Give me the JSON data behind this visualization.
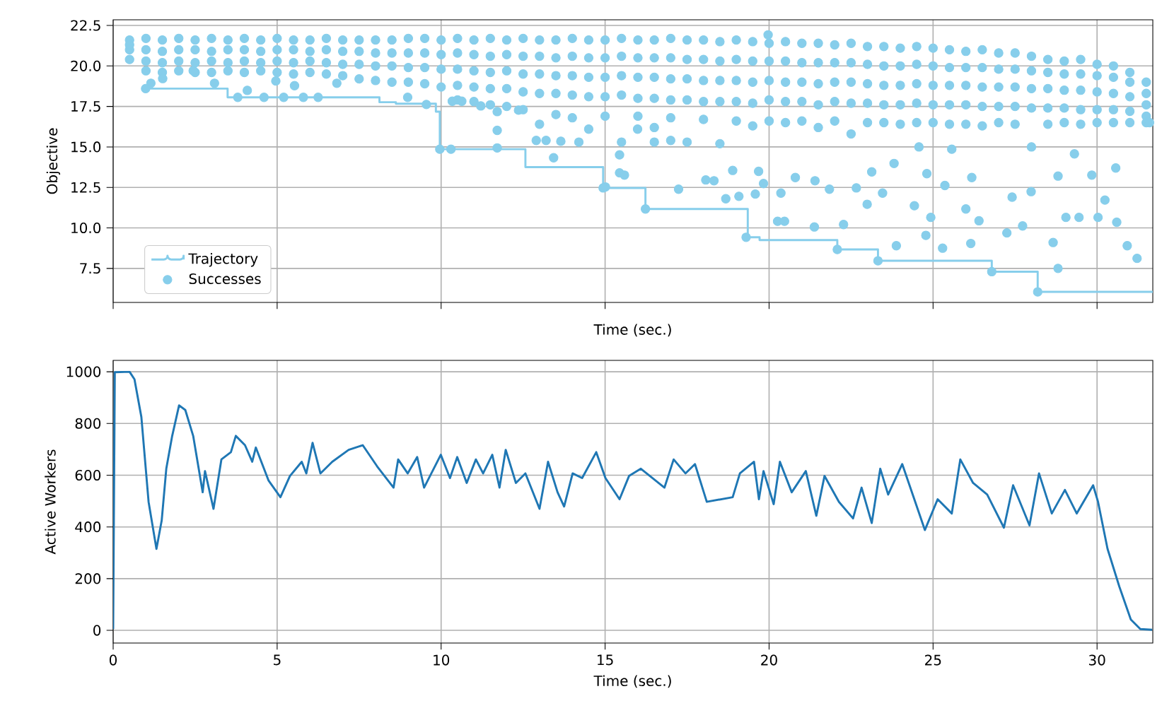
{
  "chart_data": [
    {
      "type": "scatter",
      "xlabel": "Time (sec.)",
      "ylabel": "Objective",
      "xlim": [
        0,
        31.7
      ],
      "ylim": [
        5.4,
        22.85
      ],
      "xticks": [
        0,
        5,
        10,
        15,
        20,
        25,
        30
      ],
      "yticks": [
        7.5,
        {
          "value": 10,
          "label": "10.0"
        },
        12.5,
        {
          "value": 15,
          "label": "15.0"
        },
        17.5,
        {
          "value": 20,
          "label": "20.0"
        },
        22.5
      ],
      "tick_labels": "y",
      "grid": true,
      "legend": "bottom left",
      "series": [
        {
          "name": "Trajectory",
          "type": "step",
          "marker": "none",
          "color": "#87ceeb",
          "x": [
            0.99,
            3.49,
            8.12,
            8.62,
            9.84,
            9.96,
            12.57,
            14.94,
            16.23,
            19.35,
            19.71,
            22.08,
            23.32,
            26.79,
            28.19,
            31.7
          ],
          "values": [
            18.6,
            18.06,
            17.76,
            17.67,
            17.18,
            14.86,
            13.75,
            12.47,
            11.17,
            9.42,
            9.25,
            8.67,
            7.97,
            7.3,
            6.05,
            6.05
          ]
        },
        {
          "name": "Successes",
          "type": "scatter",
          "color": "#87ceeb",
          "x": [
            0.5,
            0.5,
            0.5,
            0.5,
            1,
            1,
            1,
            1,
            1.5,
            1.5,
            1.5,
            1.5,
            2,
            2,
            2,
            2,
            2.5,
            2.5,
            2.5,
            2.5,
            3,
            3,
            3,
            3,
            3.5,
            3.5,
            3.5,
            3.5,
            4,
            4,
            4,
            4,
            4.5,
            4.5,
            4.5,
            4.5,
            5,
            5,
            5,
            5,
            5.5,
            5.5,
            5.5,
            5.5,
            6,
            6,
            6,
            6,
            6.5,
            6.5,
            6.5,
            6.5,
            7,
            7,
            7,
            7,
            7.5,
            7.5,
            7.5,
            7.5,
            8,
            8,
            8,
            8,
            8.5,
            8.5,
            8.5,
            8.5,
            9,
            9,
            9,
            9,
            9.5,
            9.5,
            9.5,
            9.5,
            10,
            10,
            10,
            10,
            10.5,
            10.5,
            10.5,
            10.5,
            10.5,
            11,
            11,
            11,
            11,
            11,
            11.5,
            11.5,
            11.5,
            11.5,
            11.5,
            12,
            12,
            12,
            12,
            12,
            12.5,
            12.5,
            12.5,
            12.5,
            12.5,
            13,
            13,
            13,
            13,
            13,
            13.5,
            13.5,
            13.5,
            13.5,
            13.5,
            14,
            14,
            14,
            14,
            14,
            14.5,
            14.5,
            14.5,
            14.5,
            14.5,
            15,
            15,
            15,
            15,
            15,
            15.5,
            15.5,
            15.5,
            15.5,
            15.5,
            16,
            16,
            16,
            16,
            16,
            16.5,
            16.5,
            16.5,
            16.5,
            16.5,
            17,
            17,
            17,
            17,
            17,
            17.5,
            17.5,
            17.5,
            17.5,
            17.5,
            18,
            18,
            18,
            18,
            18,
            18.5,
            18.5,
            18.5,
            18.5,
            18.5,
            19,
            19,
            19,
            19,
            19,
            19.5,
            19.5,
            19.5,
            19.5,
            19.5,
            20,
            20,
            20,
            20,
            20,
            20.5,
            20.5,
            20.5,
            20.5,
            20.5,
            21,
            21,
            21,
            21,
            21,
            21.5,
            21.5,
            21.5,
            21.5,
            21.5,
            22,
            22,
            22,
            22,
            22,
            22.5,
            22.5,
            22.5,
            22.5,
            22.5,
            23,
            23,
            23,
            23,
            23,
            23.5,
            23.5,
            23.5,
            23.5,
            23.5,
            24,
            24,
            24,
            24,
            24,
            24.5,
            24.5,
            24.5,
            24.5,
            24.5,
            25,
            25,
            25,
            25,
            25,
            25.5,
            25.5,
            25.5,
            25.5,
            25.5,
            26,
            26,
            26,
            26,
            26,
            26.5,
            26.5,
            26.5,
            26.5,
            26.5,
            27,
            27,
            27,
            27,
            27,
            27.5,
            27.5,
            27.5,
            27.5,
            27.5,
            28,
            28,
            28,
            28,
            28,
            28.5,
            28.5,
            28.5,
            28.5,
            28.5,
            29,
            29,
            29,
            29,
            29,
            29.5,
            29.5,
            29.5,
            29.5,
            29.5,
            30,
            30,
            30,
            30,
            30,
            30.5,
            30.5,
            30.5,
            30.5,
            30.5,
            31,
            31,
            31,
            31,
            31,
            31.5,
            31.5,
            31.5,
            31.5,
            31.5,
            19.97,
            24.43,
            24.93,
            24.78,
            23.88,
            25.29,
            26.15,
            27.25,
            27.73,
            28.81,
            28.66,
            29.05,
            29.45,
            30.03,
            30.24,
            30.57,
            30.6,
            30.92,
            31.22,
            29.84,
            28.81,
            29.31,
            27.41,
            27.99,
            26.4,
            26.0,
            26.18,
            25.36,
            24.81,
            24.57,
            25.57,
            22.99,
            22.27,
            21.38,
            20.26,
            20.47,
            20.36,
            20.8,
            21.4,
            21.84,
            22.66,
            23.46,
            23.81,
            23.13,
            19.58,
            19.08,
            18.68,
            17.24,
            18.07,
            18.32,
            18.89,
            19.68,
            19.83,
            11.71,
            11.71,
            13.43,
            15.44,
            13.65,
            15.99,
            10.34,
            10.63,
            11.21,
            11.71,
            12.36,
            6.25,
            6.82,
            5.53,
            4.96,
            2.44,
            1.51,
            1.15,
            3.09,
            4.09,
            4.6,
            5.2,
            5.8,
            3.8,
            8.98,
            9.55,
            15.44,
            15.59,
            15.01,
            12.9,
            13.2,
            14.2,
            16.5,
            17.0,
            19.3,
            22.08,
            23.32,
            26.79,
            28.19,
            16.23,
            14.94,
            9.96,
            10.3,
            0.99,
            31.6
          ],
          "values": [
            21.6,
            21.0,
            20.4,
            21.3,
            21.7,
            21.0,
            20.3,
            19.7,
            21.6,
            20.9,
            20.2,
            19.6,
            21.7,
            21.0,
            20.3,
            19.7,
            21.6,
            21.0,
            20.2,
            19.6,
            21.7,
            20.9,
            20.3,
            19.6,
            21.6,
            21.0,
            20.2,
            19.7,
            21.7,
            21.0,
            20.3,
            19.6,
            21.6,
            20.9,
            20.2,
            19.7,
            21.7,
            21.0,
            20.3,
            19.6,
            21.6,
            21.0,
            20.2,
            19.5,
            21.6,
            20.9,
            20.3,
            19.6,
            21.7,
            21.0,
            20.2,
            19.5,
            21.6,
            20.9,
            20.1,
            19.4,
            21.6,
            20.9,
            20.1,
            19.2,
            21.6,
            20.8,
            20.0,
            19.1,
            21.6,
            20.8,
            20.0,
            19.0,
            21.7,
            20.8,
            19.9,
            19.0,
            21.7,
            20.8,
            19.9,
            18.9,
            21.6,
            20.7,
            19.8,
            18.7,
            21.7,
            20.8,
            19.8,
            18.8,
            17.9,
            21.6,
            20.7,
            19.7,
            18.7,
            17.8,
            21.7,
            20.6,
            19.6,
            18.6,
            17.6,
            21.6,
            20.7,
            19.7,
            18.6,
            17.5,
            21.7,
            20.6,
            19.5,
            18.4,
            17.3,
            21.6,
            20.6,
            19.5,
            18.3,
            16.4,
            21.6,
            20.5,
            19.4,
            18.3,
            17.0,
            21.7,
            20.6,
            19.4,
            18.2,
            16.8,
            21.6,
            20.5,
            19.3,
            18.1,
            16.1,
            21.6,
            20.5,
            19.3,
            18.1,
            16.9,
            21.7,
            20.6,
            19.4,
            18.2,
            15.3,
            21.6,
            20.5,
            19.3,
            18.0,
            16.9,
            21.6,
            20.5,
            19.3,
            18.0,
            16.2,
            21.7,
            20.5,
            19.2,
            17.9,
            16.8,
            21.6,
            20.4,
            19.2,
            17.9,
            15.3,
            21.6,
            20.4,
            19.1,
            17.8,
            16.7,
            21.5,
            20.3,
            19.1,
            17.8,
            15.2,
            21.6,
            20.4,
            19.1,
            17.8,
            16.6,
            21.5,
            20.3,
            19.0,
            17.7,
            16.3,
            21.4,
            20.3,
            19.1,
            17.9,
            16.6,
            21.5,
            20.3,
            19.0,
            17.8,
            16.5,
            21.4,
            20.2,
            19.0,
            17.8,
            16.6,
            21.4,
            20.2,
            18.9,
            17.6,
            16.2,
            21.3,
            20.2,
            19.0,
            17.8,
            16.6,
            21.4,
            20.2,
            19.0,
            17.7,
            15.8,
            21.2,
            20.1,
            18.9,
            17.7,
            16.5,
            21.2,
            20.0,
            18.8,
            17.6,
            16.5,
            21.1,
            20.0,
            18.8,
            17.6,
            16.4,
            21.2,
            20.1,
            18.9,
            17.7,
            16.5,
            21.1,
            20.0,
            18.8,
            17.6,
            16.5,
            21.0,
            19.9,
            18.8,
            17.6,
            16.4,
            20.9,
            19.9,
            18.8,
            17.6,
            16.4,
            21.0,
            19.9,
            18.7,
            17.5,
            16.3,
            20.8,
            19.8,
            18.7,
            17.5,
            16.5,
            20.8,
            19.8,
            18.7,
            17.5,
            16.4,
            20.6,
            19.7,
            18.6,
            17.4,
            15.0,
            20.4,
            19.6,
            18.6,
            17.4,
            16.4,
            20.3,
            19.5,
            18.5,
            17.4,
            16.5,
            20.4,
            19.5,
            18.5,
            17.3,
            16.4,
            20.1,
            19.4,
            18.4,
            17.3,
            16.5,
            20.0,
            19.3,
            18.3,
            17.3,
            16.5,
            19.6,
            19.0,
            18.1,
            17.2,
            16.5,
            19.0,
            18.3,
            17.6,
            16.9,
            16.5,
            21.92,
            11.37,
            10.65,
            9.54,
            8.9,
            8.75,
            9.04,
            9.69,
            10.12,
            7.5,
            9.1,
            10.65,
            10.65,
            10.65,
            11.72,
            13.7,
            10.35,
            8.9,
            8.12,
            13.26,
            13.2,
            14.57,
            11.9,
            12.24,
            10.44,
            11.17,
            13.11,
            12.62,
            13.35,
            15.0,
            14.86,
            11.46,
            10.21,
            10.06,
            10.41,
            10.41,
            12.15,
            13.11,
            12.91,
            12.39,
            12.47,
            12.15,
            13.98,
            13.46,
            12.09,
            11.95,
            11.8,
            12.39,
            12.96,
            12.91,
            13.55,
            13.49,
            12.74,
            16.02,
            14.94,
            14.33,
            14.51,
            15.35,
            16.1,
            17.82,
            17.82,
            17.53,
            17.18,
            17.27,
            18.06,
            18.93,
            18.78,
            19.07,
            19.71,
            19.22,
            18.93,
            18.93,
            18.49,
            18.06,
            18.06,
            18.06,
            18.06,
            18.06,
            17.62,
            13.4,
            13.26,
            12.53,
            15.4,
            15.4,
            15.3,
            15.3,
            15.4,
            9.42,
            8.67,
            7.97,
            7.3,
            6.05,
            11.17,
            12.47,
            14.86,
            14.86,
            18.6,
            16.5
          ]
        }
      ]
    },
    {
      "type": "line",
      "xlabel": "Time (sec.)",
      "ylabel": "Active Workers",
      "xlim": [
        0,
        31.7
      ],
      "ylim": [
        -49,
        1044
      ],
      "xticks": [
        0,
        5,
        10,
        15,
        20,
        25,
        30
      ],
      "yticks": [
        0,
        200,
        400,
        600,
        800,
        1000
      ],
      "grid": true,
      "series": [
        {
          "color": "#1f77b4",
          "x": [
            0,
            0.05,
            0.5,
            0.65,
            0.86,
            1.08,
            1.32,
            1.48,
            1.62,
            1.8,
            2.01,
            2.2,
            2.44,
            2.73,
            2.8,
            3.06,
            3.3,
            3.59,
            3.74,
            4.02,
            4.24,
            4.35,
            4.74,
            5.1,
            5.39,
            5.75,
            5.89,
            6.08,
            6.32,
            6.68,
            7.18,
            7.61,
            8.05,
            8.55,
            8.69,
            8.98,
            9.27,
            9.48,
            9.99,
            10.27,
            10.49,
            10.78,
            11.06,
            11.28,
            11.56,
            11.78,
            11.97,
            12.28,
            12.57,
            13.0,
            13.26,
            13.55,
            13.75,
            14.01,
            14.3,
            14.73,
            15.01,
            15.44,
            15.73,
            16.09,
            16.81,
            17.09,
            17.45,
            17.74,
            18.1,
            18.89,
            19.11,
            19.54,
            19.69,
            19.83,
            20.14,
            20.33,
            20.69,
            21.12,
            21.44,
            21.69,
            22.13,
            22.56,
            22.82,
            23.13,
            23.39,
            23.63,
            24.06,
            24.75,
            25.14,
            25.57,
            25.83,
            26.22,
            26.65,
            27.16,
            27.44,
            27.94,
            28.23,
            28.62,
            29.02,
            29.38,
            29.88,
            30.03,
            30.32,
            30.68,
            31.03,
            31.32,
            31.68
          ],
          "values": [
            5,
            998,
            1000,
            971,
            825,
            497,
            315,
            425,
            625,
            752,
            870,
            852,
            752,
            534,
            616,
            470,
            661,
            689,
            752,
            716,
            652,
            707,
            579,
            515,
            597,
            652,
            607,
            725,
            607,
            652,
            698,
            716,
            634,
            552,
            661,
            607,
            670,
            552,
            679,
            589,
            670,
            570,
            661,
            607,
            679,
            552,
            698,
            570,
            607,
            470,
            652,
            534,
            479,
            607,
            589,
            689,
            589,
            507,
            597,
            625,
            552,
            661,
            607,
            643,
            497,
            515,
            607,
            652,
            507,
            616,
            488,
            652,
            534,
            616,
            443,
            597,
            497,
            433,
            552,
            415,
            625,
            525,
            643,
            388,
            507,
            452,
            661,
            570,
            525,
            397,
            561,
            406,
            607,
            452,
            543,
            452,
            561,
            497,
            315,
            169,
            42,
            5,
            2
          ]
        }
      ]
    }
  ]
}
